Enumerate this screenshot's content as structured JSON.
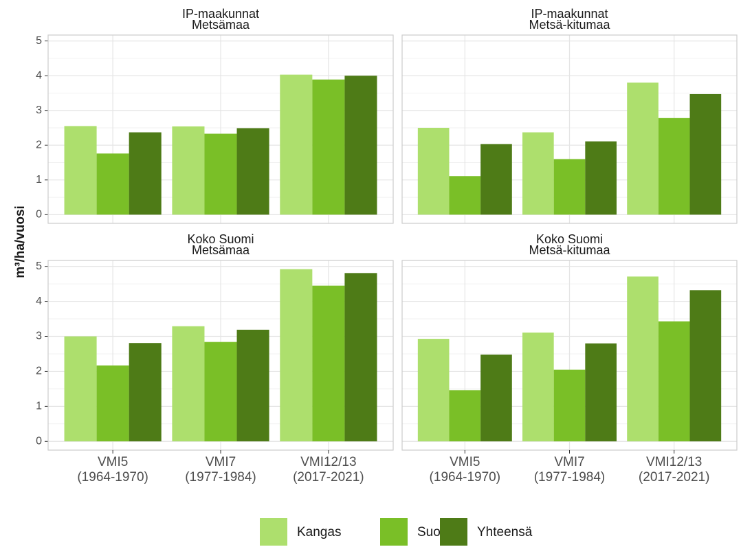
{
  "chart_data": {
    "type": "bar",
    "y_label": "m³/ha/vuosi",
    "categories": [
      "VMI5\n(1964-1970)",
      "VMI7\n(1977-1984)",
      "VMI12/13\n(2017-2021)"
    ],
    "ylim": [
      -0.25,
      5.17
    ],
    "yticks": [
      0,
      1,
      2,
      3,
      4,
      5
    ],
    "grid": true,
    "legend": "bottom",
    "series": [
      {
        "name": "Kangas",
        "color": "#addf6d"
      },
      {
        "name": "Suo",
        "color": "#7abf27"
      },
      {
        "name": "Yhteensä",
        "color": "#4e7b17"
      }
    ],
    "panels": [
      {
        "title": "IP-maakunnat",
        "subtitle": "Metsämaa",
        "series": [
          {
            "values": [
              2.55,
              2.54,
              4.03
            ]
          },
          {
            "values": [
              1.76,
              2.33,
              3.89
            ]
          },
          {
            "values": [
              2.37,
              2.49,
              4.0
            ]
          }
        ]
      },
      {
        "title": "IP-maakunnat",
        "subtitle": "Metsä-kitumaa",
        "series": [
          {
            "values": [
              2.5,
              2.37,
              3.8
            ]
          },
          {
            "values": [
              1.11,
              1.6,
              2.78
            ]
          },
          {
            "values": [
              2.03,
              2.11,
              3.47
            ]
          }
        ]
      },
      {
        "title": "Koko Suomi",
        "subtitle": "Metsämaa",
        "series": [
          {
            "values": [
              3.0,
              3.29,
              4.92
            ]
          },
          {
            "values": [
              2.17,
              2.84,
              4.45
            ]
          },
          {
            "values": [
              2.81,
              3.19,
              4.81
            ]
          }
        ]
      },
      {
        "title": "Koko Suomi",
        "subtitle": "Metsä-kitumaa",
        "series": [
          {
            "values": [
              2.93,
              3.11,
              4.71
            ]
          },
          {
            "values": [
              1.46,
              2.05,
              3.43
            ]
          },
          {
            "values": [
              2.48,
              2.8,
              4.32
            ]
          }
        ]
      }
    ]
  }
}
